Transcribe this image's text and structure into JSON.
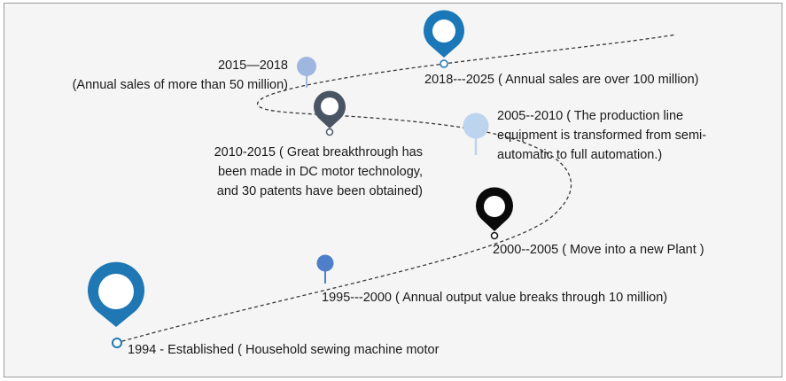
{
  "milestones": [
    {
      "id": "m1994",
      "text": [
        "1994 - Established ( Household sewing machine motor"
      ],
      "color": "#1f78b4"
    },
    {
      "id": "m1995",
      "text": [
        "1995---2000 ( Annual output value breaks through 10 million)"
      ],
      "color": "#4f7fc8"
    },
    {
      "id": "m2000",
      "text": [
        "2000--2005 ( Move into a new Plant )"
      ],
      "color": "#0a0a0a"
    },
    {
      "id": "m2005",
      "text": [
        "2005--2010 ( The production line",
        "equipment is transformed from semi-",
        "automatic to full automation.)"
      ],
      "color": "#bdd4ee"
    },
    {
      "id": "m2010",
      "text": [
        "2010-2015 ( Great breakthrough has",
        "been made in DC motor technology,",
        "and 30 patents have been obtained)"
      ],
      "color": "#4a5564"
    },
    {
      "id": "m2015",
      "text": [
        "2015—2018",
        "(Annual sales of more than 50 million)"
      ],
      "color": "#9fb7e0"
    },
    {
      "id": "m2018",
      "text": [
        "2018---2025 ( Annual sales are over 100 million)"
      ],
      "color": "#1a78b8"
    }
  ]
}
